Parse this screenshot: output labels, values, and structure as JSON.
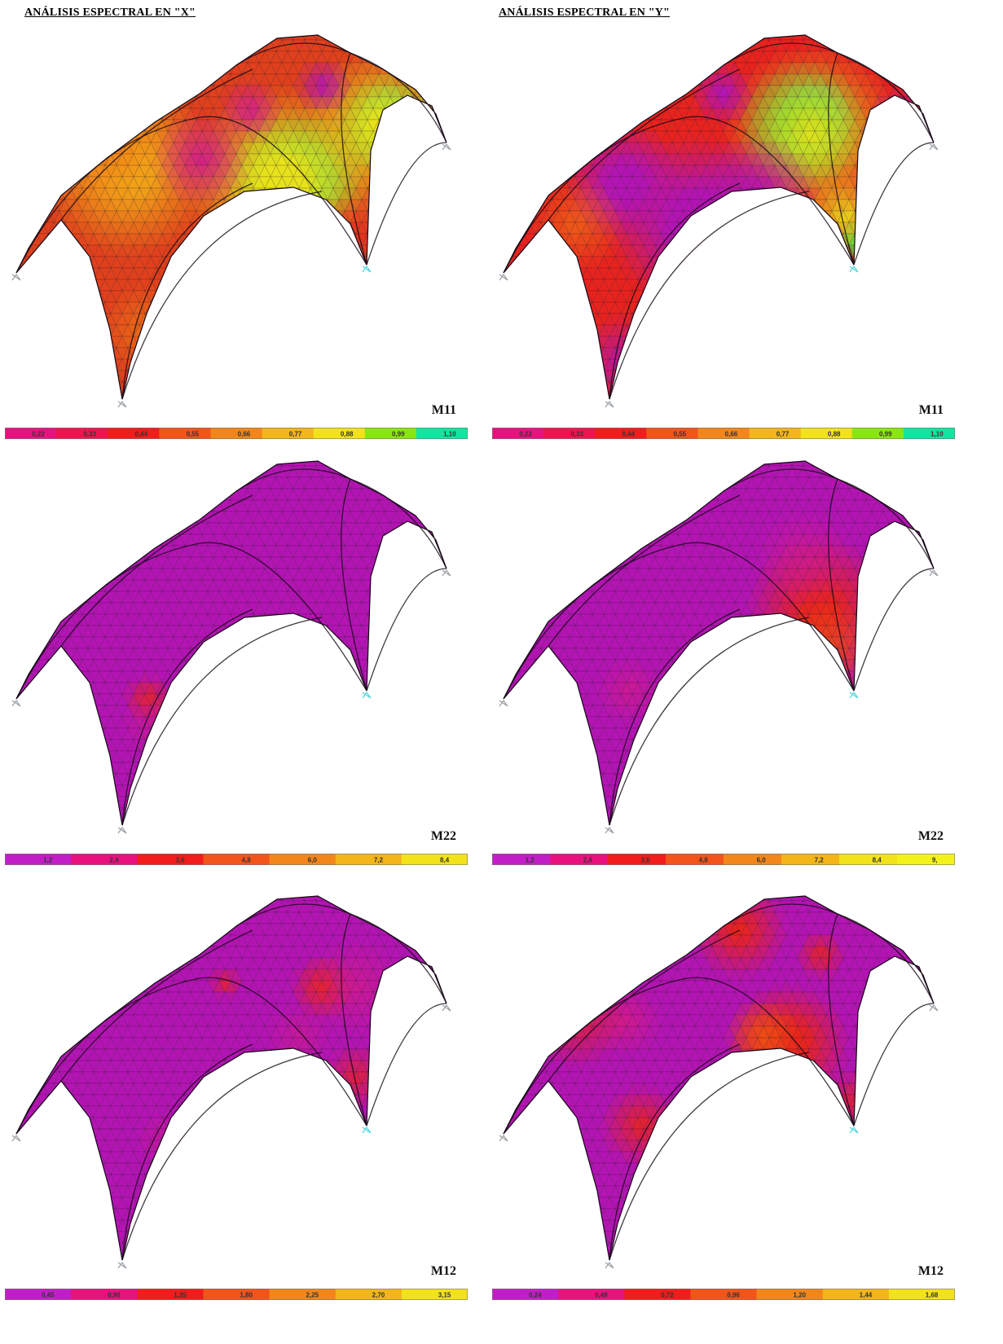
{
  "titles": {
    "left": "ANÁLISIS ESPECTRAL EN \"X\"",
    "right": "ANÁLISIS ESPECTRAL EN \"Y\""
  },
  "panels": [
    {
      "id": "x-m11",
      "label": "M11",
      "legend_colors": [
        "#e8127e",
        "#f0144e",
        "#f21c1c",
        "#f2541a",
        "#f2861a",
        "#f2b51a",
        "#f2e21a",
        "#8ae60f",
        "#0fe6a0"
      ],
      "legend_ticks": [
        "0,22",
        "0,33",
        "0,44",
        "0,55",
        "0,66",
        "0,77",
        "0,88",
        "0,99",
        "1,10"
      ],
      "field": "x_m11"
    },
    {
      "id": "y-m11",
      "label": "M11",
      "legend_colors": [
        "#e8127e",
        "#f0144e",
        "#f21c1c",
        "#f2541a",
        "#f2861a",
        "#f2b51a",
        "#f2e21a",
        "#8ae60f",
        "#0fe6a0"
      ],
      "legend_ticks": [
        "0,22",
        "0,33",
        "0,44",
        "0,55",
        "0,66",
        "0,77",
        "0,88",
        "0,99",
        "1,10"
      ],
      "field": "y_m11"
    },
    {
      "id": "x-m22",
      "label": "M22",
      "legend_colors": [
        "#c21ec7",
        "#e8127e",
        "#f21c1c",
        "#f2541a",
        "#f2861a",
        "#f2b51a",
        "#f2e21a"
      ],
      "legend_ticks": [
        "1,2",
        "2,4",
        "3,6",
        "4,8",
        "6,0",
        "7,2",
        "8,4"
      ],
      "field": "x_m22"
    },
    {
      "id": "y-m22",
      "label": "M22",
      "legend_colors": [
        "#c21ec7",
        "#e8127e",
        "#f21c1c",
        "#f2541a",
        "#f2861a",
        "#f2b51a",
        "#f2e21a",
        "#f2f21a"
      ],
      "legend_ticks": [
        "1,2",
        "2,4",
        "3,6",
        "4,8",
        "6,0",
        "7,2",
        "8,4",
        "9,"
      ],
      "field": "y_m22"
    },
    {
      "id": "x-m12",
      "label": "M12",
      "legend_colors": [
        "#c21ec7",
        "#e8127e",
        "#f21c1c",
        "#f2541a",
        "#f2861a",
        "#f2b51a",
        "#f2e21a"
      ],
      "legend_ticks": [
        "0,45",
        "0,90",
        "1,35",
        "1,80",
        "2,25",
        "2,70",
        "3,15"
      ],
      "field": "x_m12"
    },
    {
      "id": "y-m12",
      "label": "M12",
      "legend_colors": [
        "#c21ec7",
        "#e8127e",
        "#f21c1c",
        "#f2541a",
        "#f2861a",
        "#f2b51a",
        "#f2e21a"
      ],
      "legend_ticks": [
        "0,24",
        "0,48",
        "0,72",
        "0,96",
        "1,20",
        "1,44",
        "1,68"
      ],
      "field": "y_m12"
    }
  ]
}
